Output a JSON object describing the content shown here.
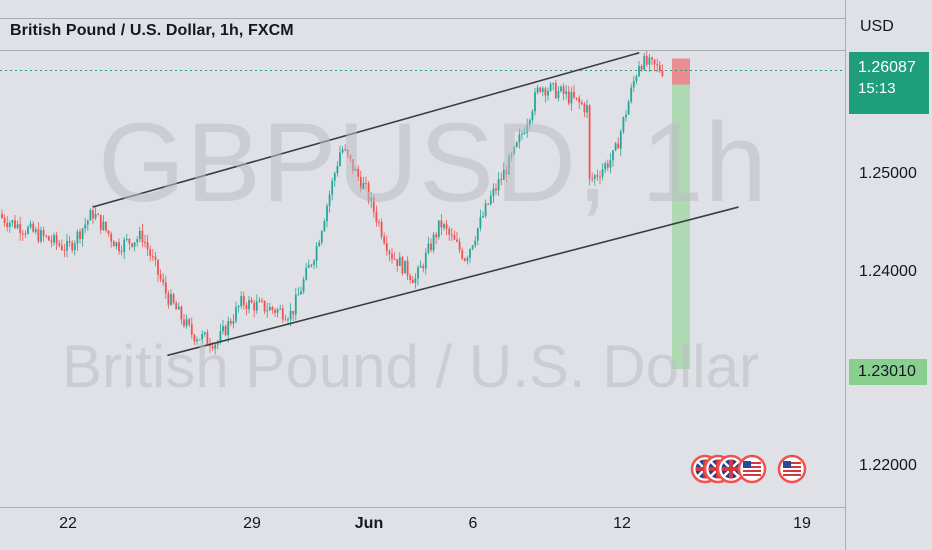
{
  "header": {
    "title": "British Pound / U.S. Dollar, 1h, FXCM"
  },
  "axis": {
    "currency": "USD"
  },
  "price_tag": {
    "value": "1.26087",
    "countdown": "15:13"
  },
  "target_tag": {
    "value": "1.23010"
  },
  "watermark": {
    "symbol": "GBPUSD, 1h",
    "name": "British Pound / U.S. Dollar"
  },
  "colors": {
    "up": "#26a69a",
    "down": "#ef5350",
    "tp_zone": "#9ed5a2",
    "sl_zone": "#ea8d93",
    "price_line": "#1e9e7a"
  },
  "chart_data": {
    "type": "candlestick",
    "xlabel": "",
    "ylabel": "",
    "ylim": [
      1.215,
      1.272
    ],
    "y_ticks": [
      "1.25000",
      "1.24000",
      "1.22000"
    ],
    "x_ticks": [
      "22",
      "29",
      "Jun",
      "6",
      "12",
      "19"
    ],
    "last_price": 1.26087,
    "stop_level": 1.2617,
    "take_profit": 1.2301,
    "approx_path": [
      [
        "May 19",
        1.2461
      ],
      [
        "May 22",
        1.2425
      ],
      [
        "May 23",
        1.2462
      ],
      [
        "May 24",
        1.2428
      ],
      [
        "May 25",
        1.2438
      ],
      [
        "May 26",
        1.2376
      ],
      [
        "May 27",
        1.2337
      ],
      [
        "May 28",
        1.2328
      ],
      [
        "May 29",
        1.237
      ],
      [
        "May 31",
        1.2358
      ],
      [
        "Jun 1",
        1.2426
      ],
      [
        "Jun 2",
        1.253
      ],
      [
        "Jun 3",
        1.2485
      ],
      [
        "Jun 4",
        1.242
      ],
      [
        "Jun 5",
        1.2393
      ],
      [
        "Jun 6",
        1.2451
      ],
      [
        "Jun 7",
        1.2416
      ],
      [
        "Jun 8",
        1.2476
      ],
      [
        "Jun 9",
        1.2525
      ],
      [
        "Jun 10",
        1.2593
      ],
      [
        "Jun 11",
        1.2584
      ],
      [
        "Jun 12",
        1.2568
      ],
      [
        "Jun 12",
        1.2494
      ],
      [
        "Jun 13",
        1.2521
      ],
      [
        "Jun 14",
        1.2618
      ],
      [
        "Jun 15",
        1.2609
      ]
    ],
    "trend_lines": [
      {
        "from": [
          "May 23",
          1.2468
        ],
        "to": [
          "Jun 14",
          1.2627
        ]
      },
      {
        "from": [
          "May 26",
          1.2315
        ],
        "to": [
          "Jun 18",
          1.2468
        ]
      }
    ],
    "events": [
      "GBP",
      "GBP",
      "GBP",
      "USD",
      "USD"
    ]
  }
}
